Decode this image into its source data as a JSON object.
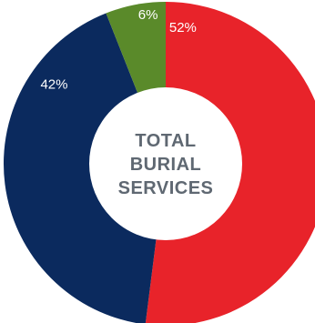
{
  "chart_data": {
    "type": "pie",
    "variant": "donut",
    "center_text": [
      "TOTAL",
      "BURIAL",
      "SERVICES"
    ],
    "slices": [
      {
        "value": 52,
        "label": "52%",
        "color": "#e8232a"
      },
      {
        "value": 42,
        "label": "42%",
        "color": "#0b2a5e"
      },
      {
        "value": 6,
        "label": "6%",
        "color": "#5a8a2a"
      }
    ],
    "start_angle_deg": 0,
    "direction": "clockwise",
    "legend": "none"
  }
}
